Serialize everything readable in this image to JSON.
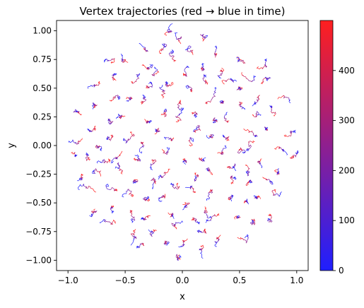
{
  "chart_data": {
    "type": "line",
    "title": "Vertex trajectories (red → blue in time)",
    "xlabel": "x",
    "ylabel": "y",
    "xlim": [
      -1.1,
      1.1
    ],
    "ylim": [
      -1.09,
      1.09
    ],
    "xticks": [
      -1.0,
      -0.5,
      0.0,
      0.5,
      1.0
    ],
    "xtick_labels": [
      "−1.0",
      "−0.5",
      "0.0",
      "0.5",
      "1.0"
    ],
    "yticks": [
      1.0,
      0.75,
      0.5,
      0.25,
      0.0,
      -0.25,
      -0.5,
      -0.75,
      -1.0
    ],
    "ytick_labels": [
      "1.00",
      "0.75",
      "0.50",
      "0.25",
      "0.00",
      "−0.25",
      "−0.50",
      "−0.75",
      "−1.00"
    ],
    "grid": false,
    "colorbar": {
      "min": 0,
      "max": 500,
      "ticks": [
        0,
        100,
        200,
        300,
        400
      ],
      "tick_labels": [
        "0",
        "100",
        "200",
        "300",
        "400"
      ],
      "color_low": "#1f1fff",
      "color_high": "#ff1f1f"
    },
    "series": {
      "description_note": "",
      "num_vertices": 130,
      "radius": 0.97,
      "time_steps": 500
    }
  }
}
